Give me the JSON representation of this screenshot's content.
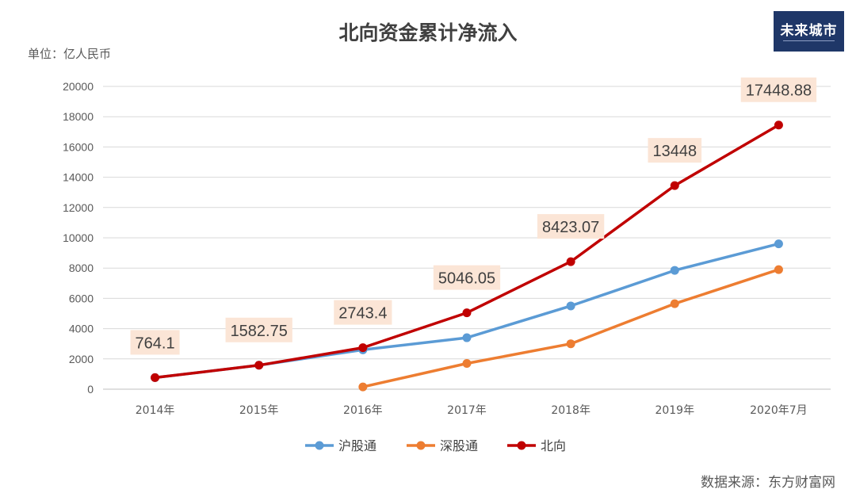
{
  "title": "北向资金累计净流入",
  "unit": "单位：亿人民币",
  "source": "数据来源：东方财富网",
  "logo": {
    "text": "未来城市",
    "colors": {
      "bg": "#1f3768",
      "fg": "#ffffff"
    }
  },
  "chart_data": {
    "type": "line",
    "title": "北向资金累计净流入",
    "xlabel": "",
    "ylabel": "",
    "categories": [
      "2014年",
      "2015年",
      "2016年",
      "2017年",
      "2018年",
      "2019年",
      "2020年7月"
    ],
    "ylim": [
      0,
      20000
    ],
    "yticks": [
      0,
      2000,
      4000,
      6000,
      8000,
      10000,
      12000,
      14000,
      16000,
      18000,
      20000
    ],
    "grid": true,
    "legend": "bottom",
    "series": [
      {
        "name": "沪股通",
        "color": "#5b9bd5",
        "values": [
          764.1,
          1582.75,
          2600,
          3400,
          5500,
          7850,
          9600
        ]
      },
      {
        "name": "深股通",
        "color": "#ed7d31",
        "values": [
          null,
          null,
          150,
          1700,
          3000,
          5650,
          7900
        ]
      },
      {
        "name": "北向",
        "color": "#c00000",
        "values": [
          764.1,
          1582.75,
          2743.4,
          5046.05,
          8423.07,
          13448,
          17448.88
        ],
        "labels": [
          "764.1",
          "1582.75",
          "2743.4",
          "5046.05",
          "8423.07",
          "13448",
          "17448.88"
        ]
      }
    ]
  }
}
